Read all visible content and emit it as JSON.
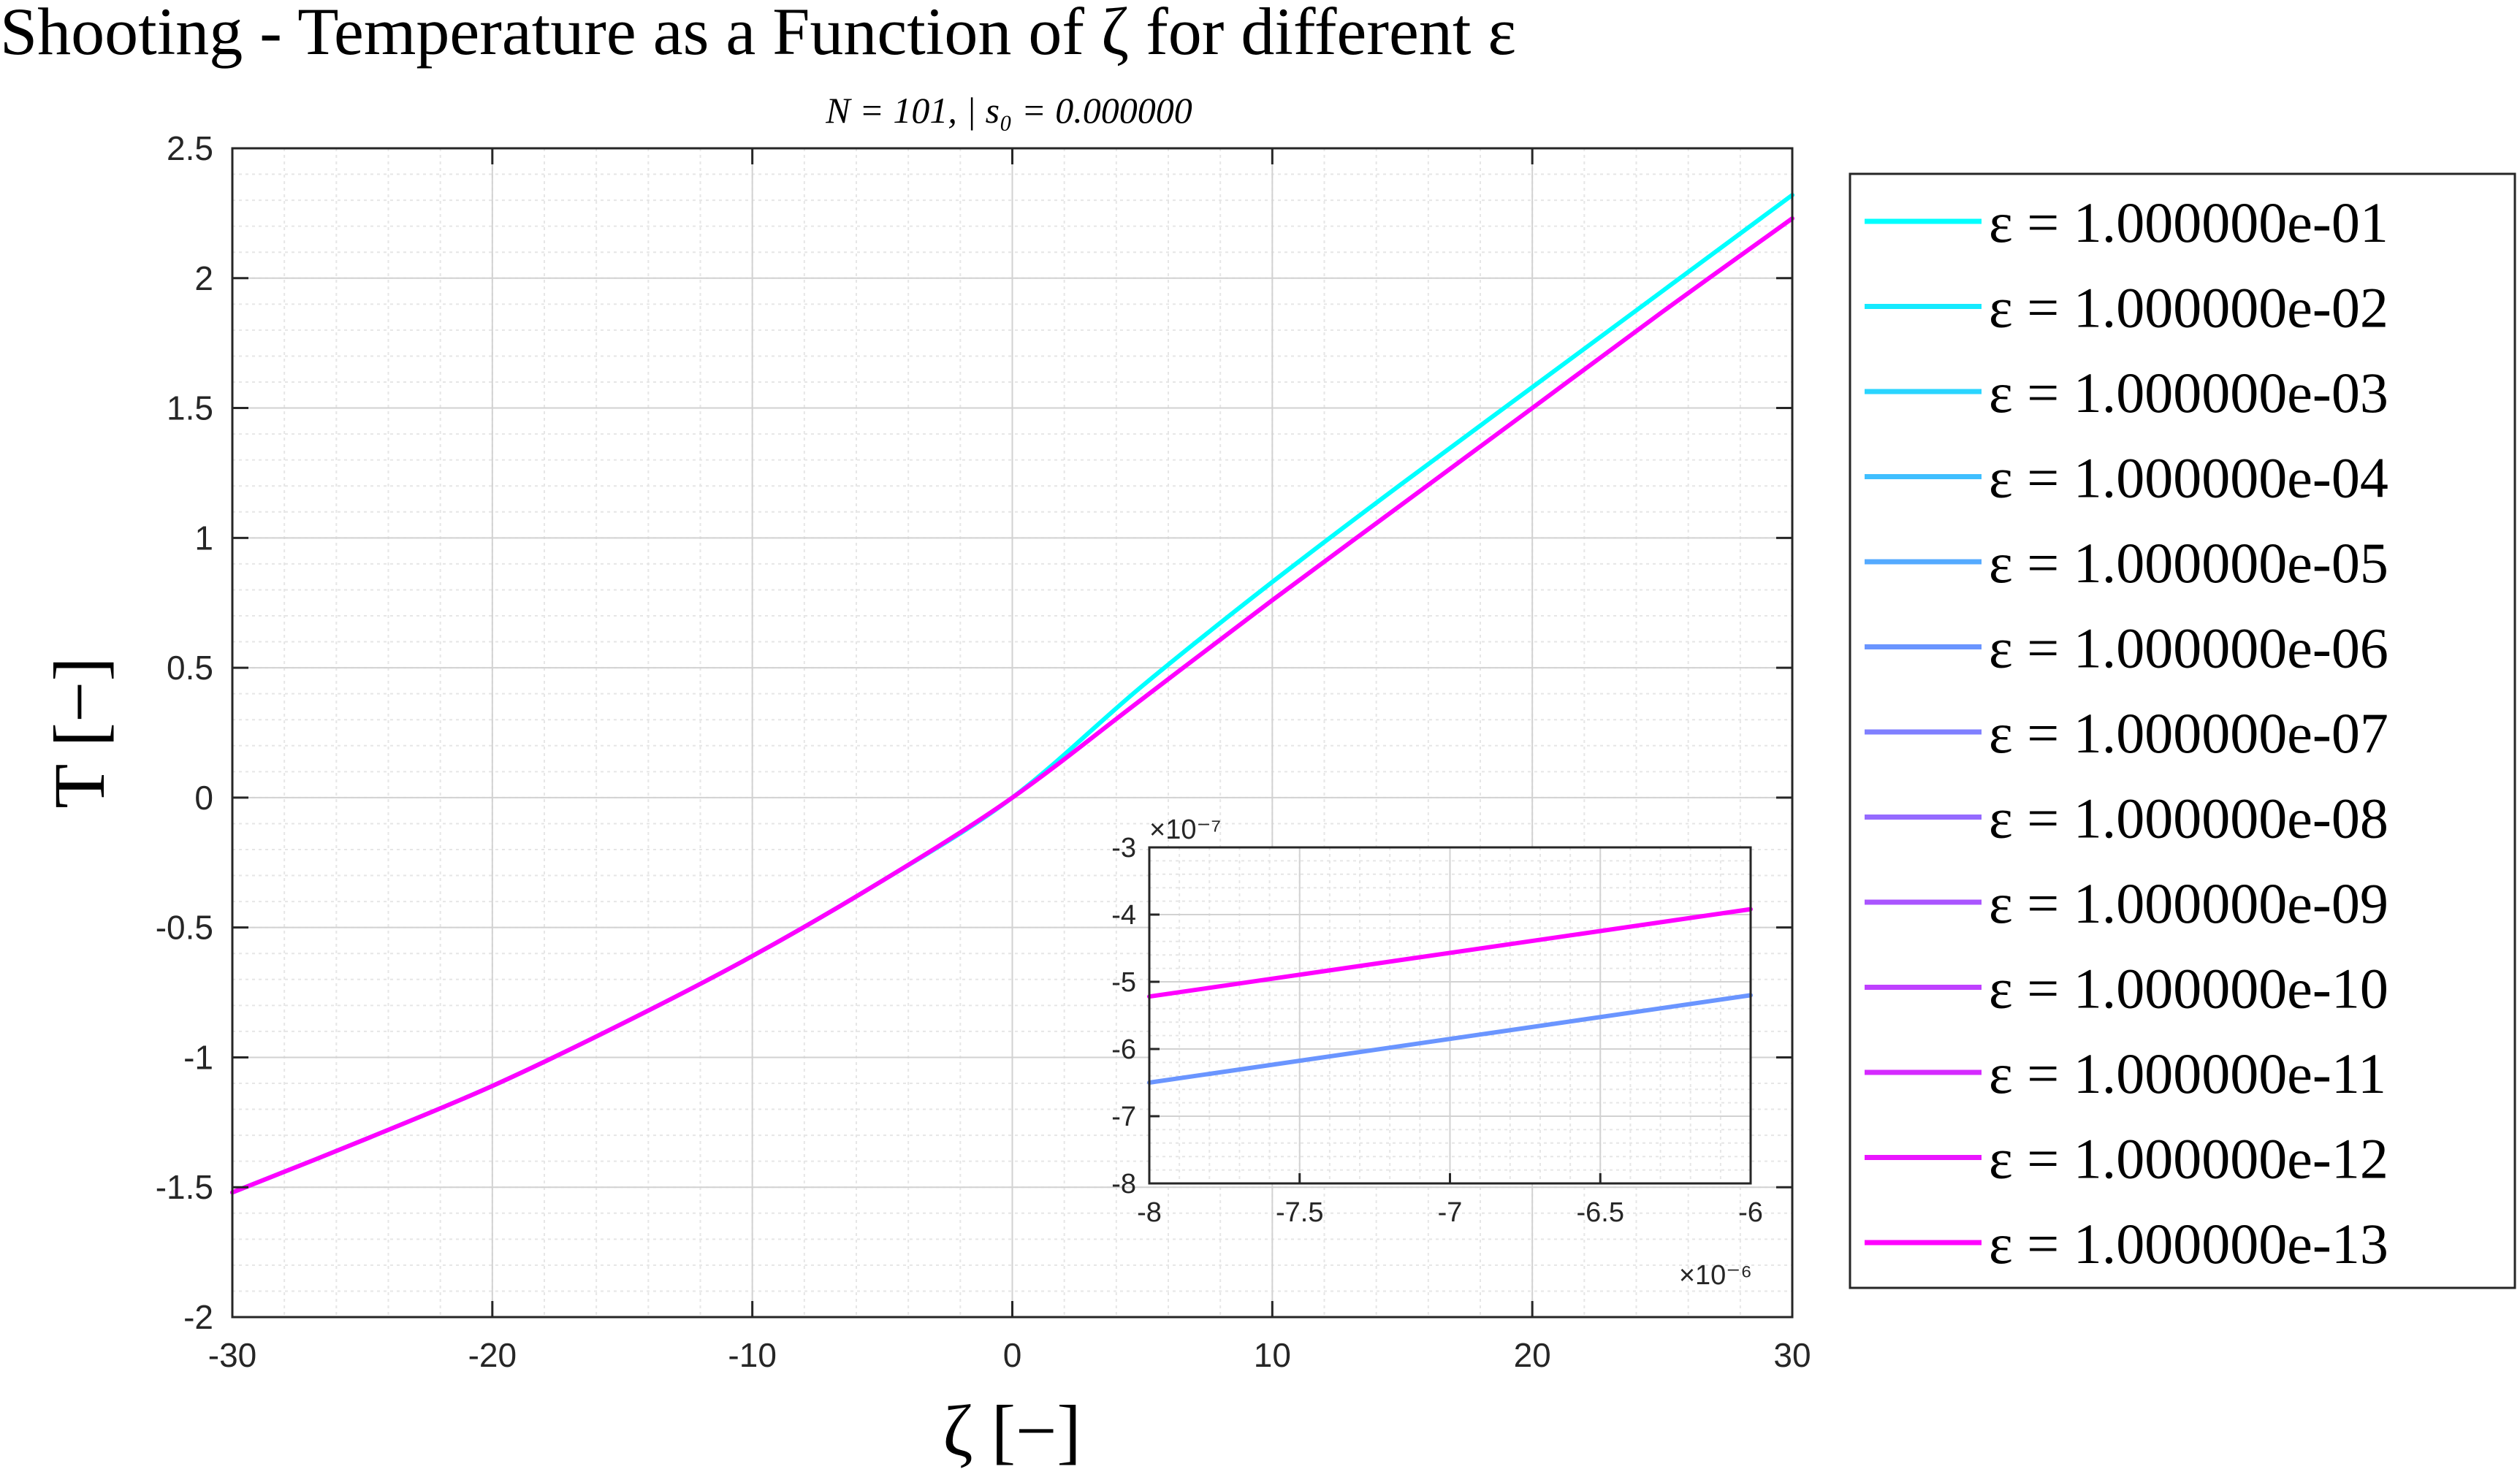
{
  "chart_data": {
    "type": "line",
    "title": "Shooting - Temperature as a Function of ζ for different ε",
    "subtitle": "N = 101, | s₀ = 0.000000",
    "xlabel": "ζ [−]",
    "ylabel": "T [−]",
    "xlim": [
      -30,
      30
    ],
    "ylim": [
      -2,
      2.5
    ],
    "xticks": [
      "-30",
      "-20",
      "-10",
      "0",
      "10",
      "20",
      "30"
    ],
    "yticks": [
      "-2",
      "-1.5",
      "-1",
      "-0.5",
      "0",
      "0.5",
      "1",
      "1.5",
      "2",
      "2.5"
    ],
    "grid": true,
    "minor_grid": true,
    "legend_position": "outside-right",
    "series": [
      {
        "name": "ε = 1.000000e-01",
        "color": "#00ffff"
      },
      {
        "name": "ε = 1.000000e-02",
        "color": "#15eaff"
      },
      {
        "name": "ε = 1.000000e-03",
        "color": "#2ad5ff"
      },
      {
        "name": "ε = 1.000000e-04",
        "color": "#40bfff"
      },
      {
        "name": "ε = 1.000000e-05",
        "color": "#55aaff"
      },
      {
        "name": "ε = 1.000000e-06",
        "color": "#6a95ff"
      },
      {
        "name": "ε = 1.000000e-07",
        "color": "#8080ff"
      },
      {
        "name": "ε = 1.000000e-08",
        "color": "#956aff"
      },
      {
        "name": "ε = 1.000000e-09",
        "color": "#aa55ff"
      },
      {
        "name": "ε = 1.000000e-10",
        "color": "#bf40ff"
      },
      {
        "name": "ε = 1.000000e-11",
        "color": "#d52aff"
      },
      {
        "name": "ε = 1.000000e-12",
        "color": "#ea15ff"
      },
      {
        "name": "ε = 1.000000e-13",
        "color": "#ff00ff"
      }
    ],
    "main_curves": [
      {
        "label": "ε = 1.000000e-01 (cyan)",
        "color": "#00ffff",
        "x": [
          -30,
          -25,
          -20,
          -15,
          -10,
          -5,
          0,
          5,
          10,
          15,
          20,
          25,
          30
        ],
        "y": [
          -1.52,
          -1.32,
          -1.11,
          -0.87,
          -0.61,
          -0.32,
          0.0,
          0.43,
          0.83,
          1.21,
          1.58,
          1.95,
          2.32
        ]
      },
      {
        "label": "ε = 1.000000e-13 (magenta)",
        "color": "#ff00ff",
        "x": [
          -30,
          -25,
          -20,
          -15,
          -10,
          -5,
          0,
          5,
          10,
          15,
          20,
          25,
          30
        ],
        "y": [
          -1.52,
          -1.32,
          -1.11,
          -0.87,
          -0.61,
          -0.32,
          0.0,
          0.38,
          0.76,
          1.13,
          1.5,
          1.87,
          2.23
        ]
      }
    ],
    "inset": {
      "xlim": [
        -8,
        -6
      ],
      "ylim": [
        -8,
        -3
      ],
      "x_multiplier": "×10⁻⁶",
      "y_multiplier": "×10⁻⁷",
      "xticks": [
        "-8",
        "-7.5",
        "-7",
        "-6.5",
        "-6"
      ],
      "yticks": [
        "-8",
        "-7",
        "-6",
        "-5",
        "-4",
        "-3"
      ],
      "curves": [
        {
          "color": "#ff00ff",
          "x": [
            -8,
            -6
          ],
          "y": [
            -5.22,
            -3.92
          ]
        },
        {
          "color": "#6a95ff",
          "x": [
            -8,
            -6
          ],
          "y": [
            -6.5,
            -5.2
          ]
        }
      ]
    }
  }
}
